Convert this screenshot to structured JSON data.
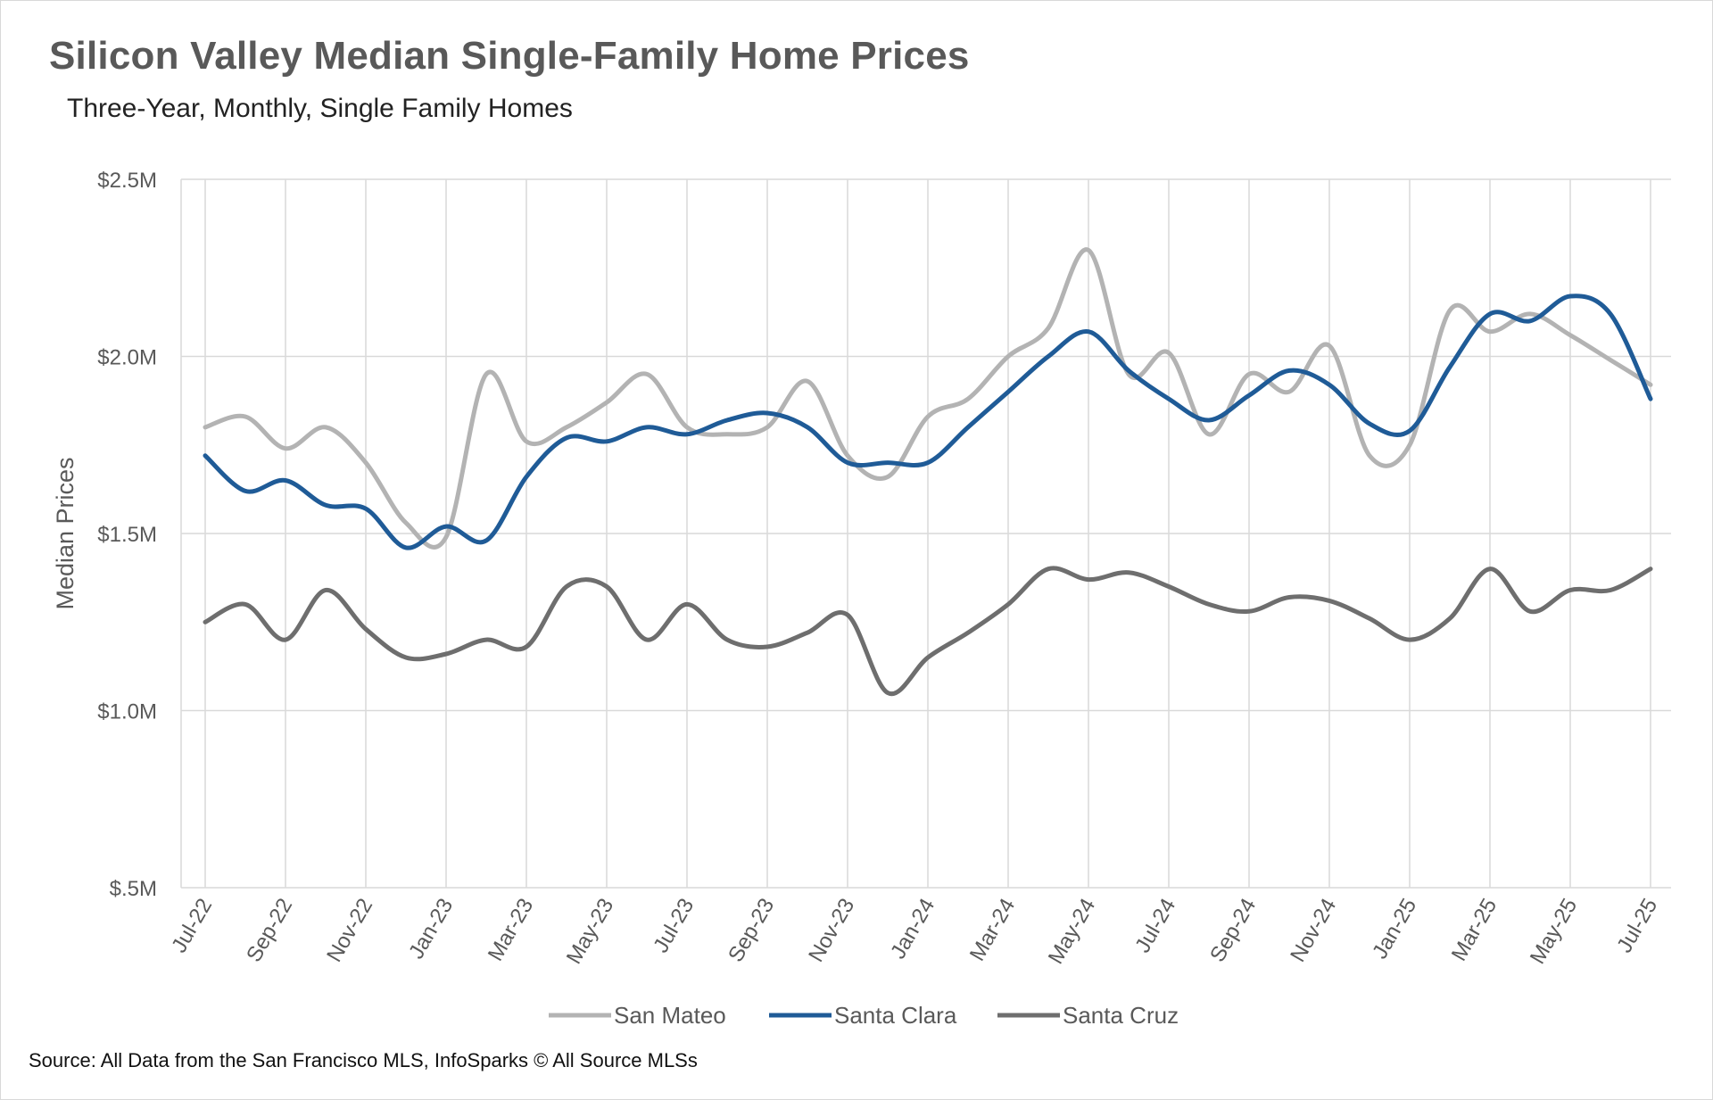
{
  "header": {
    "title": "Silicon Valley Median Single-Family Home Prices",
    "subtitle": "Three-Year, Monthly, Single Family Homes"
  },
  "footer": {
    "source": "Source: All Data from the San Francisco MLS, InfoSparks © All Source MLSs"
  },
  "chart_data": {
    "type": "line",
    "title": "Silicon Valley Median Single-Family Home Prices",
    "subtitle": "Three-Year, Monthly, Single Family Homes",
    "xlabel": "",
    "ylabel": "Median Prices",
    "ylim": [
      0.5,
      2.5
    ],
    "y_unit": "millions of dollars",
    "y_ticks": [
      0.5,
      1.0,
      1.5,
      2.0,
      2.5
    ],
    "y_tick_labels": [
      "$.5M",
      "$1.0M",
      "$1.5M",
      "$2.0M",
      "$2.5M"
    ],
    "x": [
      "Jul-22",
      "Aug-22",
      "Sep-22",
      "Oct-22",
      "Nov-22",
      "Dec-22",
      "Jan-23",
      "Feb-23",
      "Mar-23",
      "Apr-23",
      "May-23",
      "Jun-23",
      "Jul-23",
      "Aug-23",
      "Sep-23",
      "Oct-23",
      "Nov-23",
      "Dec-23",
      "Jan-24",
      "Feb-24",
      "Mar-24",
      "Apr-24",
      "May-24",
      "Jun-24",
      "Jul-24",
      "Aug-24",
      "Sep-24",
      "Oct-24",
      "Nov-24",
      "Dec-24",
      "Jan-25",
      "Feb-25",
      "Mar-25",
      "Apr-25",
      "May-25",
      "Jun-25",
      "Jul-25"
    ],
    "x_tick_labels": [
      "Jul-22",
      "Sep-22",
      "Nov-22",
      "Jan-23",
      "Mar-23",
      "May-23",
      "Jul-23",
      "Sep-23",
      "Nov-23",
      "Jan-24",
      "Mar-24",
      "May-24",
      "Jul-24",
      "Sep-24",
      "Nov-24",
      "Jan-25",
      "Mar-25",
      "May-25",
      "Jul-25"
    ],
    "grid": true,
    "legend_position": "bottom",
    "series": [
      {
        "name": "San Mateo",
        "color": "#b3b3b3",
        "values": [
          1.8,
          1.83,
          1.74,
          1.8,
          1.7,
          1.53,
          1.49,
          1.95,
          1.76,
          1.8,
          1.87,
          1.95,
          1.8,
          1.78,
          1.8,
          1.93,
          1.72,
          1.66,
          1.83,
          1.88,
          2.0,
          2.08,
          2.3,
          1.95,
          2.01,
          1.78,
          1.95,
          1.9,
          2.03,
          1.72,
          1.75,
          2.13,
          2.07,
          2.12,
          2.06,
          1.99,
          1.92
        ]
      },
      {
        "name": "Santa Clara",
        "color": "#1f5b97",
        "values": [
          1.72,
          1.62,
          1.65,
          1.58,
          1.57,
          1.46,
          1.52,
          1.48,
          1.66,
          1.77,
          1.76,
          1.8,
          1.78,
          1.82,
          1.84,
          1.8,
          1.7,
          1.7,
          1.7,
          1.8,
          1.9,
          2.0,
          2.07,
          1.96,
          1.88,
          1.82,
          1.89,
          1.96,
          1.92,
          1.81,
          1.79,
          1.97,
          2.12,
          2.1,
          2.17,
          2.12,
          1.88
        ]
      },
      {
        "name": "Santa Cruz",
        "color": "#6e6e6e",
        "values": [
          1.25,
          1.3,
          1.2,
          1.34,
          1.23,
          1.15,
          1.16,
          1.2,
          1.18,
          1.35,
          1.35,
          1.2,
          1.3,
          1.2,
          1.18,
          1.22,
          1.27,
          1.05,
          1.15,
          1.22,
          1.3,
          1.4,
          1.37,
          1.39,
          1.35,
          1.3,
          1.28,
          1.32,
          1.31,
          1.26,
          1.2,
          1.26,
          1.4,
          1.28,
          1.34,
          1.34,
          1.4
        ]
      }
    ]
  }
}
